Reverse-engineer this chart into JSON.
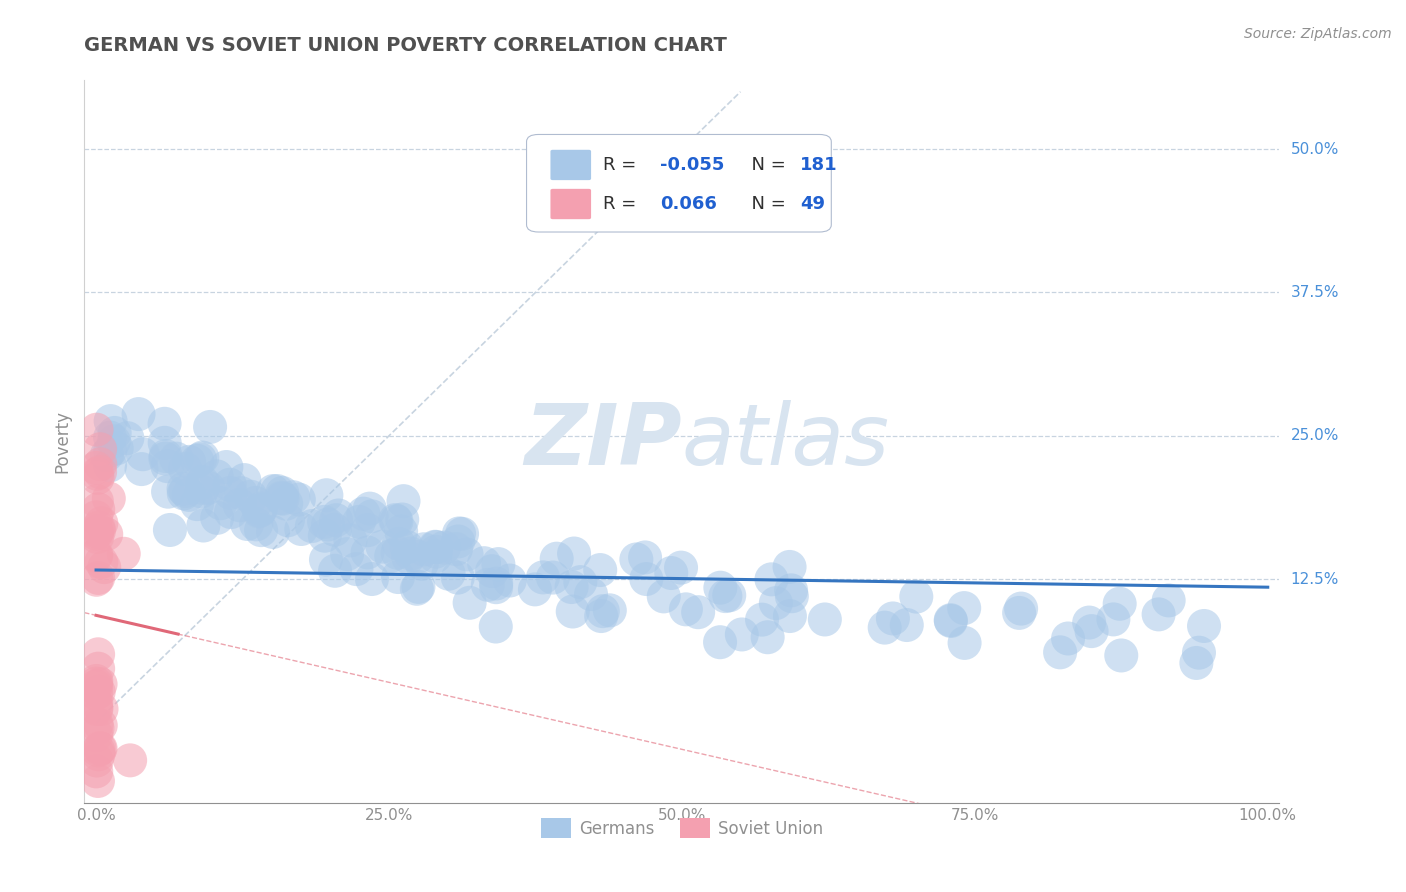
{
  "title": "GERMAN VS SOVIET UNION POVERTY CORRELATION CHART",
  "source_text": "Source: ZipAtlas.com",
  "ylabel": "Poverty",
  "xlim": [
    -0.01,
    1.01
  ],
  "ylim": [
    -0.07,
    0.56
  ],
  "xticks": [
    0.0,
    0.25,
    0.5,
    0.75,
    1.0
  ],
  "xtick_labels": [
    "0.0%",
    "25.0%",
    "50.0%",
    "75.0%",
    "100.0%"
  ],
  "yticks": [
    0.125,
    0.25,
    0.375,
    0.5
  ],
  "ytick_labels": [
    "12.5%",
    "25.0%",
    "37.5%",
    "50.0%"
  ],
  "german_R": -0.055,
  "german_N": 181,
  "soviet_R": 0.066,
  "soviet_N": 49,
  "german_color": "#a8c8e8",
  "soviet_color": "#f4a0b0",
  "german_line_color": "#3575c0",
  "soviet_line_color": "#e06878",
  "background_color": "#ffffff",
  "watermark_color": "#d8e4f0",
  "grid_color": "#c8d4e0",
  "title_color": "#505050",
  "axis_color": "#909090",
  "legend_R_color": "#2060d0",
  "diag_line_color": "#c8d4e0"
}
